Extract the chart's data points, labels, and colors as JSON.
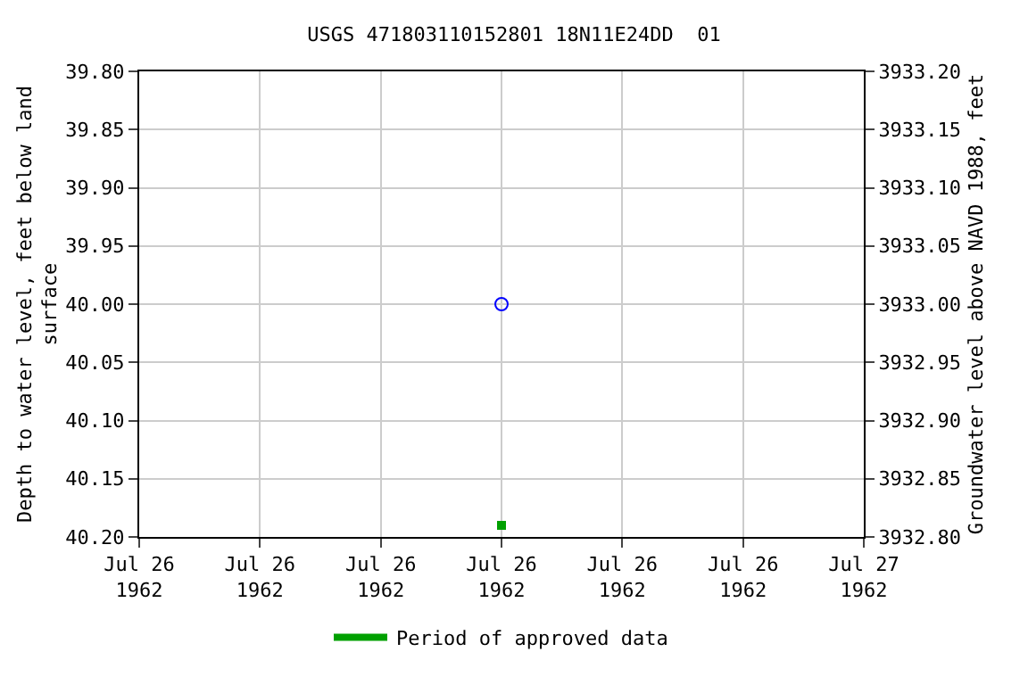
{
  "chart_data": {
    "type": "scatter",
    "title": "USGS 471803110152801 18N11E24DD  01",
    "ylabel": "Depth to water level, feet below land\nsurface",
    "y2label": "Groundwater level above NAVD 1988, feet",
    "xlim": [
      "1962-07-26T00:00",
      "1962-07-27T00:00"
    ],
    "xticks": [
      {
        "value": "1962-07-26T00:00",
        "label": "Jul 26\n1962"
      },
      {
        "value": "1962-07-26T04:00",
        "label": "Jul 26\n1962"
      },
      {
        "value": "1962-07-26T08:00",
        "label": "Jul 26\n1962"
      },
      {
        "value": "1962-07-26T12:00",
        "label": "Jul 26\n1962"
      },
      {
        "value": "1962-07-26T16:00",
        "label": "Jul 26\n1962"
      },
      {
        "value": "1962-07-26T20:00",
        "label": "Jul 26\n1962"
      },
      {
        "value": "1962-07-27T00:00",
        "label": "Jul 27\n1962"
      }
    ],
    "ylim": [
      40.2,
      39.8
    ],
    "yticks": [
      {
        "value": 39.8,
        "label": "39.80"
      },
      {
        "value": 39.85,
        "label": "39.85"
      },
      {
        "value": 39.9,
        "label": "39.90"
      },
      {
        "value": 39.95,
        "label": "39.95"
      },
      {
        "value": 40.0,
        "label": "40.00"
      },
      {
        "value": 40.05,
        "label": "40.05"
      },
      {
        "value": 40.1,
        "label": "40.10"
      },
      {
        "value": 40.15,
        "label": "40.15"
      },
      {
        "value": 40.2,
        "label": "40.20"
      }
    ],
    "y2lim": [
      3932.8,
      3933.2
    ],
    "y2ticks": [
      {
        "value": 3932.8,
        "label": "3932.80"
      },
      {
        "value": 3932.85,
        "label": "3932.85"
      },
      {
        "value": 3932.9,
        "label": "3932.90"
      },
      {
        "value": 3932.95,
        "label": "3932.95"
      },
      {
        "value": 3933.0,
        "label": "3933.00"
      },
      {
        "value": 3933.05,
        "label": "3933.05"
      },
      {
        "value": 3933.1,
        "label": "3933.10"
      },
      {
        "value": 3933.15,
        "label": "3933.15"
      },
      {
        "value": 3933.2,
        "label": "3933.20"
      }
    ],
    "grid": true,
    "legend": "bottom",
    "series": [
      {
        "color": "#0000ff",
        "marker": "circle",
        "x": [
          "1962-07-26T12:00"
        ],
        "values": [
          40.0
        ]
      },
      {
        "name": "Period of approved data",
        "color": "#00a000",
        "marker": "square",
        "x": [
          "1962-07-26T12:00"
        ],
        "values": [
          40.19
        ]
      }
    ]
  }
}
